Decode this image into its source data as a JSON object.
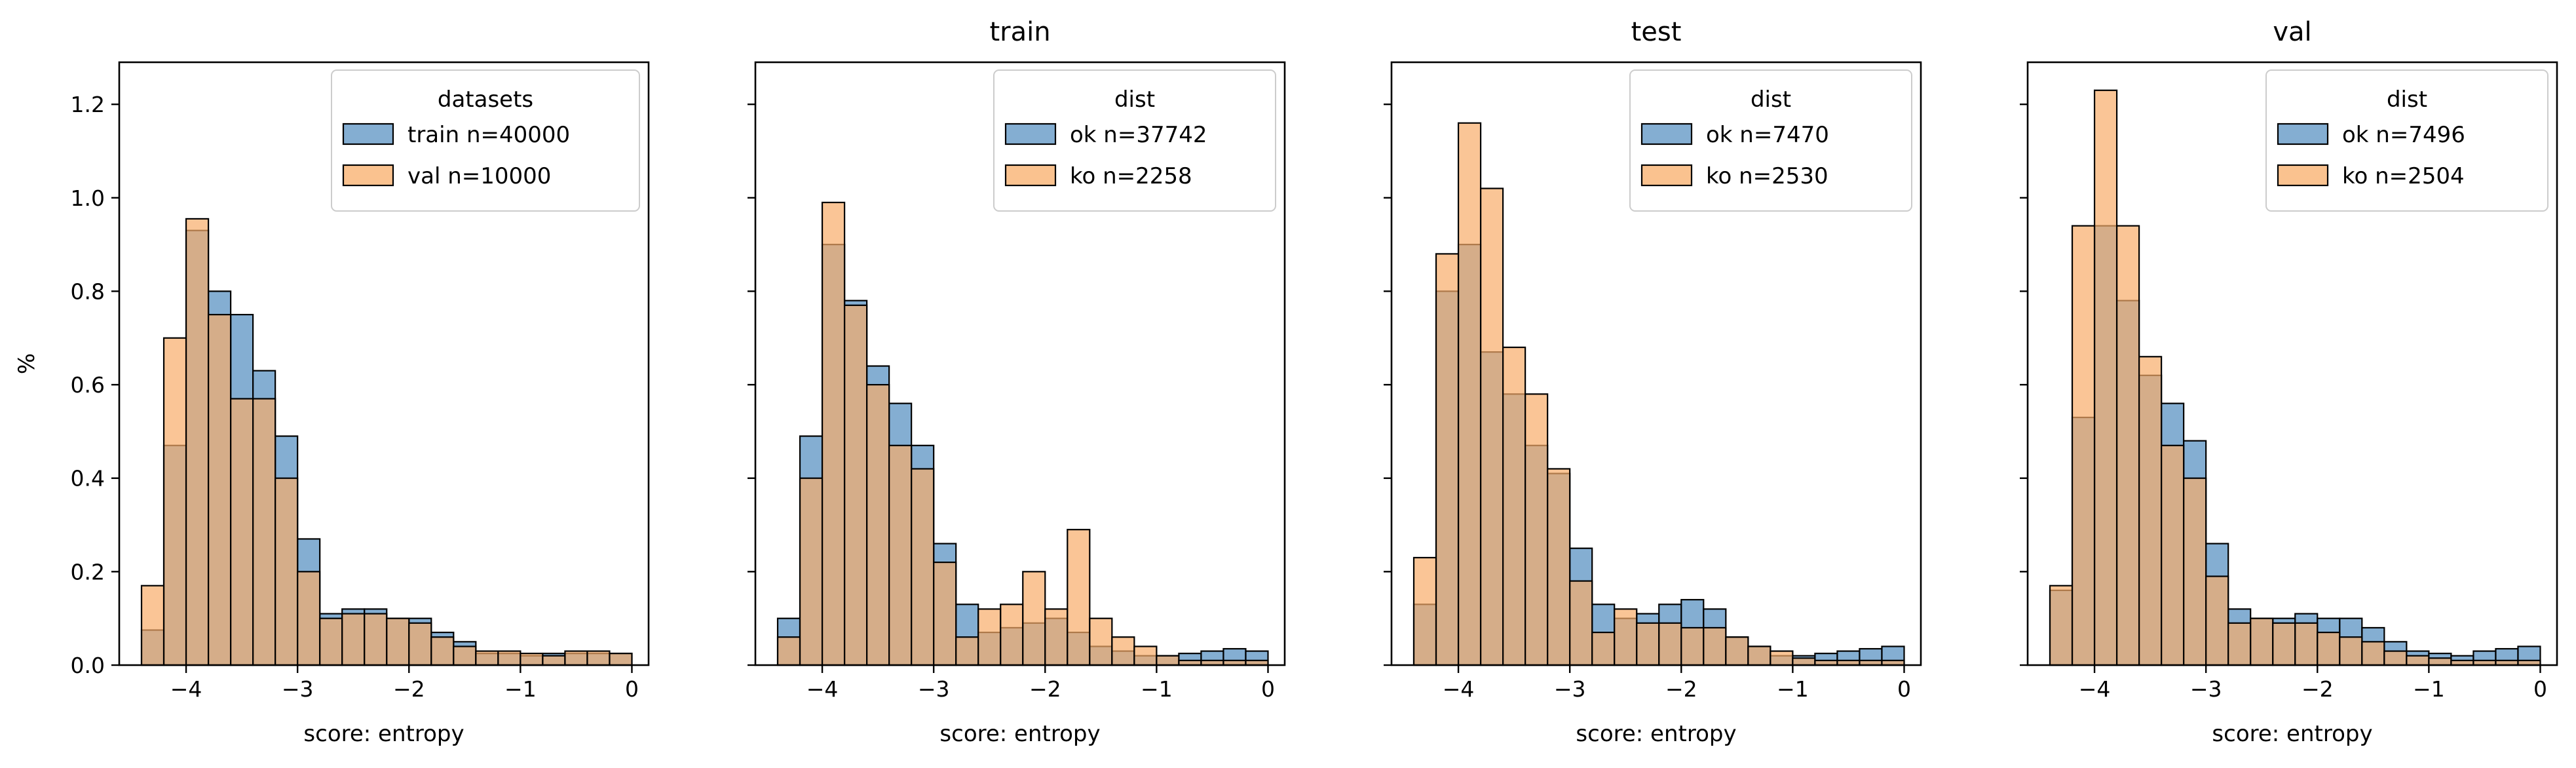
{
  "figure": {
    "shared_ylabel": "%",
    "colors": {
      "blue": "#5b93c3",
      "orange": "#f8ad6a",
      "edge": "#000000",
      "overlap": "#b5835a"
    }
  },
  "chart_data": [
    {
      "type": "bar",
      "title": "",
      "xlabel": "score: entropy",
      "ylabel": "%",
      "xlim": [
        -4.6,
        0.15
      ],
      "ylim": [
        0,
        1.29
      ],
      "xticks": [
        -4,
        -3,
        -2,
        -1,
        0
      ],
      "yticks": [
        0.0,
        0.2,
        0.4,
        0.6,
        0.8,
        1.0,
        1.2
      ],
      "grid": false,
      "legend": {
        "title": "datasets",
        "placement": "top-right",
        "entries": [
          "train n=40000",
          "val n=10000"
        ]
      },
      "series": [
        {
          "name": "train n=40000",
          "color": "blue",
          "bin_start": -4.4,
          "bin_width": 0.2,
          "values": [
            0.075,
            0.47,
            0.93,
            0.8,
            0.75,
            0.63,
            0.49,
            0.27,
            0.11,
            0.12,
            0.12,
            0.1,
            0.1,
            0.07,
            0.05,
            0.025,
            0.025,
            0.02,
            0.025,
            0.025,
            0.025,
            0.025
          ]
        },
        {
          "name": "val n=10000",
          "color": "orange",
          "bin_start": -4.4,
          "bin_width": 0.2,
          "values": [
            0.17,
            0.7,
            0.955,
            0.75,
            0.57,
            0.57,
            0.4,
            0.2,
            0.1,
            0.11,
            0.11,
            0.1,
            0.09,
            0.06,
            0.04,
            0.03,
            0.03,
            0.025,
            0.02,
            0.03,
            0.03,
            0.025
          ]
        }
      ]
    },
    {
      "type": "bar",
      "title": "train",
      "xlabel": "score: entropy",
      "ylabel": "",
      "xlim": [
        -4.6,
        0.15
      ],
      "ylim": [
        0,
        1.29
      ],
      "xticks": [
        -4,
        -3,
        -2,
        -1,
        0
      ],
      "yticks": [
        0.0,
        0.2,
        0.4,
        0.6,
        0.8,
        1.0,
        1.2
      ],
      "grid": false,
      "legend": {
        "title": "dist",
        "placement": "top-right",
        "entries": [
          "ok n=37742",
          "ko n=2258"
        ]
      },
      "series": [
        {
          "name": "ok n=37742",
          "color": "blue",
          "bin_start": -4.4,
          "bin_width": 0.2,
          "values": [
            0.1,
            0.49,
            0.9,
            0.78,
            0.64,
            0.56,
            0.47,
            0.26,
            0.13,
            0.07,
            0.08,
            0.09,
            0.1,
            0.07,
            0.04,
            0.03,
            0.02,
            0.02,
            0.025,
            0.03,
            0.035,
            0.03
          ]
        },
        {
          "name": "ko n=2258",
          "color": "orange",
          "bin_start": -4.4,
          "bin_width": 0.2,
          "values": [
            0.06,
            0.4,
            0.99,
            0.77,
            0.6,
            0.47,
            0.42,
            0.22,
            0.06,
            0.12,
            0.13,
            0.2,
            0.12,
            0.29,
            0.1,
            0.06,
            0.04,
            0.02,
            0.01,
            0.01,
            0.01,
            0.01
          ]
        }
      ]
    },
    {
      "type": "bar",
      "title": "test",
      "xlabel": "score: entropy",
      "ylabel": "",
      "xlim": [
        -4.6,
        0.15
      ],
      "ylim": [
        0,
        1.29
      ],
      "xticks": [
        -4,
        -3,
        -2,
        -1,
        0
      ],
      "yticks": [
        0.0,
        0.2,
        0.4,
        0.6,
        0.8,
        1.0,
        1.2
      ],
      "grid": false,
      "legend": {
        "title": "dist",
        "placement": "top-right",
        "entries": [
          "ok n=7470",
          "ko n=2530"
        ]
      },
      "series": [
        {
          "name": "ok n=7470",
          "color": "blue",
          "bin_start": -4.4,
          "bin_width": 0.2,
          "values": [
            0.13,
            0.8,
            0.9,
            0.67,
            0.58,
            0.47,
            0.41,
            0.25,
            0.13,
            0.1,
            0.11,
            0.13,
            0.14,
            0.12,
            0.06,
            0.04,
            0.02,
            0.02,
            0.025,
            0.03,
            0.035,
            0.04
          ]
        },
        {
          "name": "ko n=2530",
          "color": "orange",
          "bin_start": -4.4,
          "bin_width": 0.2,
          "values": [
            0.23,
            0.88,
            1.16,
            1.02,
            0.68,
            0.58,
            0.42,
            0.18,
            0.07,
            0.12,
            0.09,
            0.09,
            0.08,
            0.08,
            0.06,
            0.04,
            0.03,
            0.015,
            0.01,
            0.01,
            0.01,
            0.01
          ]
        }
      ]
    },
    {
      "type": "bar",
      "title": "val",
      "xlabel": "score: entropy",
      "ylabel": "",
      "xlim": [
        -4.6,
        0.15
      ],
      "ylim": [
        0,
        1.29
      ],
      "xticks": [
        -4,
        -3,
        -2,
        -1,
        0
      ],
      "yticks": [
        0.0,
        0.2,
        0.4,
        0.6,
        0.8,
        1.0,
        1.2
      ],
      "grid": false,
      "legend": {
        "title": "dist",
        "placement": "top-right",
        "entries": [
          "ok n=7496",
          "ko n=2504"
        ]
      },
      "series": [
        {
          "name": "ok n=7496",
          "color": "blue",
          "bin_start": -4.4,
          "bin_width": 0.2,
          "values": [
            0.16,
            0.53,
            0.94,
            0.78,
            0.62,
            0.56,
            0.48,
            0.26,
            0.12,
            0.1,
            0.1,
            0.11,
            0.1,
            0.1,
            0.08,
            0.05,
            0.03,
            0.025,
            0.02,
            0.03,
            0.035,
            0.04
          ]
        },
        {
          "name": "ko n=2504",
          "color": "orange",
          "bin_start": -4.4,
          "bin_width": 0.2,
          "values": [
            0.17,
            0.94,
            1.23,
            0.94,
            0.66,
            0.47,
            0.4,
            0.19,
            0.09,
            0.1,
            0.09,
            0.09,
            0.07,
            0.06,
            0.05,
            0.03,
            0.02,
            0.015,
            0.01,
            0.01,
            0.01,
            0.01
          ]
        }
      ]
    }
  ]
}
